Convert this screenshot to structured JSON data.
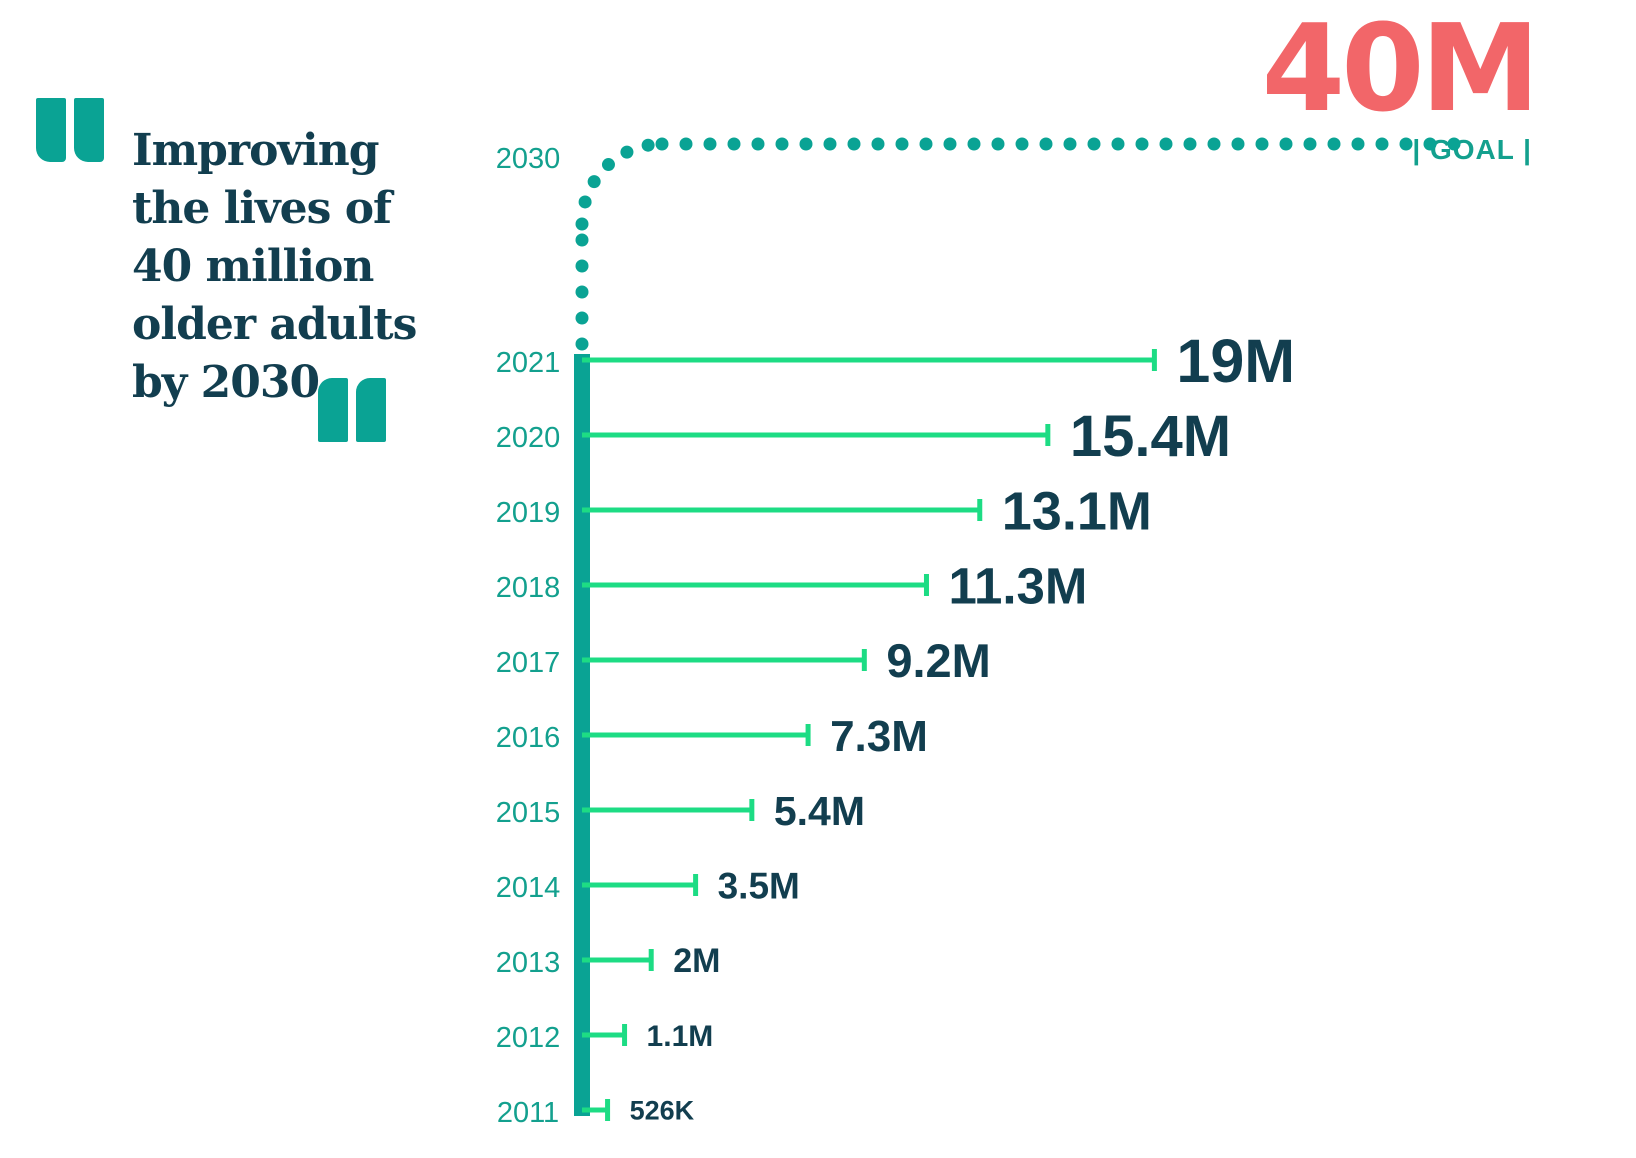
{
  "headline": [
    "Improving",
    "the lives of",
    "40 million",
    "older adults",
    "by 2030"
  ],
  "goal": {
    "value_label": "40M",
    "label": "GOAL",
    "year": "2030"
  },
  "colors": {
    "accent": "#f26669",
    "bar": "#1ddc84",
    "axis": "#0aa394",
    "text": "#123e4f",
    "year": "#13a08e"
  },
  "chart_data": {
    "type": "bar",
    "orientation": "horizontal",
    "categories": [
      "2011",
      "2012",
      "2013",
      "2014",
      "2015",
      "2016",
      "2017",
      "2018",
      "2019",
      "2020",
      "2021"
    ],
    "values": [
      0.526,
      1.1,
      2,
      3.5,
      5.4,
      7.3,
      9.2,
      11.3,
      13.1,
      15.4,
      19
    ],
    "value_labels": [
      "526K",
      "1.1M",
      "2M",
      "3.5M",
      "5.4M",
      "7.3M",
      "9.2M",
      "11.3M",
      "13.1M",
      "15.4M",
      "19M"
    ],
    "unit": "million",
    "goal": {
      "year": "2030",
      "value": 40
    }
  }
}
